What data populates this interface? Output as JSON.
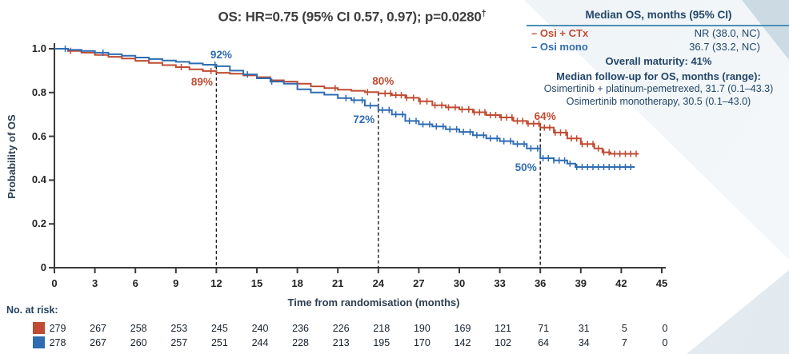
{
  "title": {
    "text": "OS: HR=0.75 (95% CI 0.57, 0.97); p=0.0280",
    "dagger": "†"
  },
  "stats_panel": {
    "header": "Median OS, months (95% CI)",
    "rows": [
      {
        "marker": "–",
        "label": "Osi + CTx",
        "value": "NR (38.0, NC)",
        "color": "#bf4b32"
      },
      {
        "marker": "–",
        "label": "Osi mono",
        "value": "36.7 (33.2, NC)",
        "color": "#2f6cb2"
      }
    ],
    "maturity": "Overall maturity: 41%",
    "followup_header": "Median follow-up for OS, months (range):",
    "followup_lines": [
      "Osimertinib + platinum-pemetrexed, 31.7 (0.1–43.3)",
      "Osimertinib monotherapy, 30.5 (0.1–43.0)"
    ]
  },
  "chart_data": {
    "type": "line",
    "subtype": "kaplan-meier",
    "title": "OS: HR=0.75 (95% CI 0.57, 0.97); p=0.0280†",
    "xlabel": "Time from randomisation (months)",
    "ylabel": "Probability of OS",
    "xlim": [
      0,
      45
    ],
    "ylim": [
      0,
      1.0
    ],
    "grid": false,
    "x_ticks": [
      0,
      3,
      6,
      9,
      12,
      15,
      18,
      21,
      24,
      27,
      30,
      33,
      36,
      39,
      42,
      45
    ],
    "y_ticks": [
      {
        "v": 0,
        "label": "0"
      },
      {
        "v": 0.2,
        "label": "0.2"
      },
      {
        "v": 0.4,
        "label": "0.4"
      },
      {
        "v": 0.6,
        "label": "0.6"
      },
      {
        "v": 0.8,
        "label": "0.8"
      },
      {
        "v": 1.0,
        "label": "1.0"
      }
    ],
    "series": [
      {
        "name": "Osi + CTx",
        "color": "#bf4b32",
        "points": [
          [
            0,
            1.0
          ],
          [
            1,
            0.99
          ],
          [
            2,
            0.982
          ],
          [
            3,
            0.972
          ],
          [
            4,
            0.963
          ],
          [
            5,
            0.955
          ],
          [
            6,
            0.945
          ],
          [
            7,
            0.935
          ],
          [
            8,
            0.925
          ],
          [
            9,
            0.916
          ],
          [
            10,
            0.906
          ],
          [
            11,
            0.898
          ],
          [
            12,
            0.89
          ],
          [
            13,
            0.886
          ],
          [
            14,
            0.878
          ],
          [
            15,
            0.87
          ],
          [
            16,
            0.856
          ],
          [
            17,
            0.85
          ],
          [
            18,
            0.84
          ],
          [
            19,
            0.828
          ],
          [
            20,
            0.82
          ],
          [
            21,
            0.813
          ],
          [
            22,
            0.808
          ],
          [
            23,
            0.802
          ],
          [
            24,
            0.796
          ],
          [
            25,
            0.788
          ],
          [
            26,
            0.776
          ],
          [
            27,
            0.76
          ],
          [
            28,
            0.742
          ],
          [
            29,
            0.732
          ],
          [
            30,
            0.723
          ],
          [
            31,
            0.71
          ],
          [
            32,
            0.697
          ],
          [
            33,
            0.686
          ],
          [
            34,
            0.67
          ],
          [
            35,
            0.658
          ],
          [
            36,
            0.64
          ],
          [
            37,
            0.617
          ],
          [
            38,
            0.59
          ],
          [
            39,
            0.565
          ],
          [
            40,
            0.545
          ],
          [
            40.6,
            0.527
          ],
          [
            41.2,
            0.52
          ],
          [
            43.3,
            0.52
          ]
        ],
        "censor_months": [
          1.2,
          9.4,
          11.6,
          20.8,
          23.2,
          24.5,
          24.9,
          25.3,
          25.7,
          26.1,
          26.6,
          27.1,
          27.6,
          28.2,
          28.7,
          29.2,
          29.7,
          30.2,
          30.7,
          31.1,
          31.5,
          31.9,
          32.3,
          32.7,
          33.1,
          33.5,
          33.9,
          34.3,
          34.7,
          35.1,
          35.5,
          35.9,
          36.3,
          36.7,
          37.1,
          37.5,
          37.9,
          38.3,
          38.7,
          39.1,
          39.5,
          39.9,
          40.3,
          40.7,
          41.1,
          41.5,
          41.9,
          42.3,
          42.7,
          43.1
        ]
      },
      {
        "name": "Osi mono",
        "color": "#2f6cb2",
        "points": [
          [
            0,
            1.0
          ],
          [
            1,
            0.995
          ],
          [
            2,
            0.99
          ],
          [
            3,
            0.982
          ],
          [
            4,
            0.975
          ],
          [
            5,
            0.968
          ],
          [
            6,
            0.96
          ],
          [
            7,
            0.953
          ],
          [
            8,
            0.946
          ],
          [
            9,
            0.94
          ],
          [
            10,
            0.933
          ],
          [
            11,
            0.927
          ],
          [
            12,
            0.92
          ],
          [
            13,
            0.9
          ],
          [
            14,
            0.883
          ],
          [
            15,
            0.865
          ],
          [
            16,
            0.85
          ],
          [
            17,
            0.84
          ],
          [
            18,
            0.815
          ],
          [
            19,
            0.8
          ],
          [
            20,
            0.79
          ],
          [
            21,
            0.775
          ],
          [
            22,
            0.765
          ],
          [
            23,
            0.74
          ],
          [
            24,
            0.72
          ],
          [
            25,
            0.7
          ],
          [
            26,
            0.67
          ],
          [
            27,
            0.655
          ],
          [
            28,
            0.645
          ],
          [
            29,
            0.632
          ],
          [
            30,
            0.62
          ],
          [
            31,
            0.605
          ],
          [
            32,
            0.59
          ],
          [
            33,
            0.578
          ],
          [
            34,
            0.565
          ],
          [
            35,
            0.545
          ],
          [
            36,
            0.5
          ],
          [
            37,
            0.49
          ],
          [
            38,
            0.475
          ],
          [
            38.6,
            0.46
          ],
          [
            43,
            0.46
          ]
        ],
        "censor_months": [
          0.8,
          3.6,
          11.9,
          14.3,
          16.1,
          21.6,
          22.2,
          22.8,
          23.4,
          24.3,
          24.8,
          25.3,
          25.8,
          26.3,
          26.8,
          27.3,
          27.8,
          28.3,
          28.8,
          29.3,
          29.8,
          30.3,
          30.8,
          31.3,
          31.8,
          32.3,
          32.8,
          33.3,
          33.8,
          34.3,
          34.8,
          35.3,
          35.8,
          36.2,
          36.6,
          37.0,
          37.4,
          37.8,
          38.2,
          38.7,
          39.1,
          39.5,
          39.9,
          40.3,
          40.7,
          41.1,
          41.5,
          41.9,
          42.3,
          42.7
        ]
      }
    ],
    "annotations": [
      {
        "label": "92%",
        "series": "Osi mono",
        "month": 12,
        "value": 0.92,
        "placement": "above"
      },
      {
        "label": "89%",
        "series": "Osi + CTx",
        "month": 12,
        "value": 0.89,
        "placement": "below"
      },
      {
        "label": "80%",
        "series": "Osi + CTx",
        "month": 24,
        "value": 0.8,
        "placement": "above"
      },
      {
        "label": "72%",
        "series": "Osi mono",
        "month": 24,
        "value": 0.72,
        "placement": "below"
      },
      {
        "label": "64%",
        "series": "Osi + CTx",
        "month": 36,
        "value": 0.64,
        "placement": "above"
      },
      {
        "label": "50%",
        "series": "Osi mono",
        "month": 36,
        "value": 0.5,
        "placement": "below"
      }
    ],
    "reference_lines": [
      {
        "month": 12,
        "top": 0.92
      },
      {
        "month": 24,
        "top": 0.8
      },
      {
        "month": 36,
        "top": 0.64
      }
    ]
  },
  "risk_table": {
    "label": "No. at risk:",
    "months": [
      0,
      3,
      6,
      9,
      12,
      15,
      18,
      21,
      24,
      27,
      30,
      33,
      36,
      39,
      42,
      45
    ],
    "rows": [
      {
        "name": "Osi + CTx",
        "color": "#bf4b32",
        "counts": [
          279,
          267,
          258,
          253,
          245,
          240,
          236,
          226,
          218,
          190,
          169,
          121,
          71,
          31,
          5,
          0
        ]
      },
      {
        "name": "Osi mono",
        "color": "#2f6cb2",
        "counts": [
          278,
          267,
          260,
          257,
          251,
          244,
          228,
          213,
          195,
          170,
          142,
          102,
          64,
          34,
          7,
          0
        ]
      }
    ]
  },
  "colors": {
    "osi_ctx": "#bf4b32",
    "osi_mono": "#2f6cb2",
    "axis": "#3a3a3a",
    "navy_text": "#234669",
    "rule": "#4a8fb5"
  }
}
